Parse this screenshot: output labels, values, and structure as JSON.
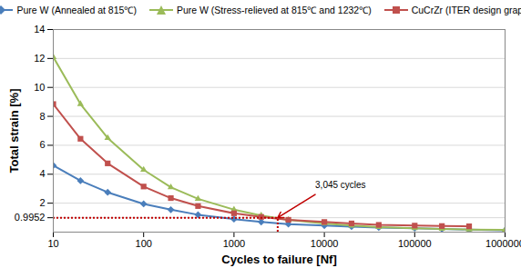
{
  "chart_data": {
    "type": "line",
    "x_label": "Cycles to failure [Nf]",
    "y_label": "Total strain [%]",
    "x": [
      10,
      20,
      40,
      100,
      200,
      400,
      1000,
      2000,
      4000,
      10000,
      20000,
      40000,
      100000,
      200000,
      400000,
      1000000
    ],
    "series": [
      {
        "name": "Pure W (Annealed at 815℃)",
        "color": "#4a7ebb",
        "marker": "diamond",
        "values": [
          4.6,
          3.55,
          2.75,
          1.95,
          1.55,
          1.2,
          0.9,
          0.7,
          0.55,
          0.45,
          0.38,
          0.32,
          0.27,
          0.22,
          0.17,
          0.12
        ]
      },
      {
        "name": "Pure W (Stress-relieved at 815℃ and 1232℃)",
        "color": "#9bbb59",
        "marker": "triangle",
        "values": [
          12.1,
          8.85,
          6.5,
          4.3,
          3.1,
          2.3,
          1.55,
          1.15,
          0.85,
          0.6,
          0.45,
          0.35,
          0.27,
          0.22,
          0.18,
          0.15
        ]
      },
      {
        "name": "CuCrZr (ITER design graph)",
        "color": "#c0504d",
        "marker": "square",
        "values": [
          8.85,
          6.45,
          4.75,
          3.15,
          2.35,
          1.8,
          1.3,
          1.05,
          0.85,
          0.7,
          0.6,
          0.5,
          0.45,
          0.42,
          0.4,
          null
        ]
      }
    ],
    "annotations": [
      {
        "text": "3,045 cycles",
        "x": 3045,
        "y": 0.9952,
        "color": "#c00000",
        "line_style": "dotted"
      }
    ],
    "log": "x",
    "xlim": [
      10,
      1000000
    ],
    "xticks": [
      10,
      100,
      1000,
      10000,
      100000,
      1000000
    ],
    "ylim": [
      0,
      14
    ],
    "yticks": [
      0.9952,
      2,
      4,
      6,
      8,
      10,
      12,
      14
    ],
    "grid": true,
    "legend": "top"
  }
}
